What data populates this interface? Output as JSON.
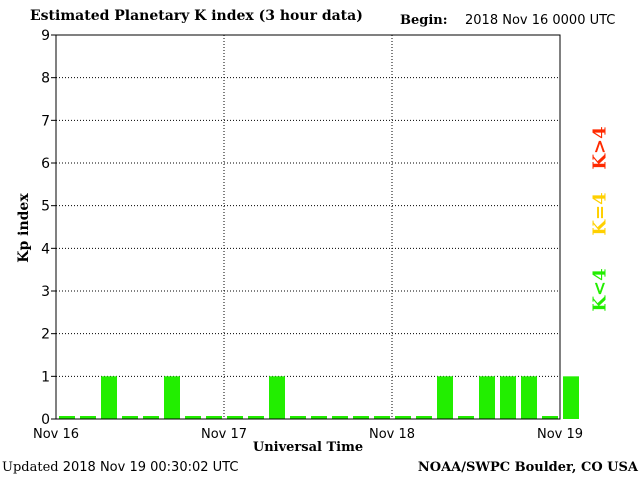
{
  "header": {
    "title": "Estimated Planetary K index (3 hour data)",
    "begin_label": "Begin:",
    "begin_value": "2018 Nov 16 0000 UTC"
  },
  "footer": {
    "updated_label": "Updated",
    "updated_value": "2018 Nov 19 00:30:02 UTC",
    "credit": "NOAA/SWPC Boulder, CO USA"
  },
  "legend": [
    {
      "label": "K>4",
      "color": "#ff2a00"
    },
    {
      "label": "K=4",
      "color": "#ffd000"
    },
    {
      "label": "K<4",
      "color": "#22ee00"
    }
  ],
  "chart_data": {
    "type": "bar",
    "title": "Estimated Planetary K index (3 hour data)",
    "xlabel": "Universal Time",
    "ylabel": "Kp index",
    "ylim": [
      0,
      9
    ],
    "yticks": [
      "0",
      "1",
      "2",
      "3",
      "4",
      "5",
      "6",
      "7",
      "8",
      "9"
    ],
    "xticks": [
      "Nov 16",
      "Nov 17",
      "Nov 18",
      "Nov 19"
    ],
    "grid": true,
    "bar_color": "#22ee00",
    "values": [
      0,
      0,
      1,
      0,
      0,
      1,
      0,
      0,
      0,
      0,
      1,
      0,
      0,
      0,
      0,
      0,
      0,
      0,
      1,
      0,
      1,
      1,
      1,
      0,
      1
    ]
  }
}
